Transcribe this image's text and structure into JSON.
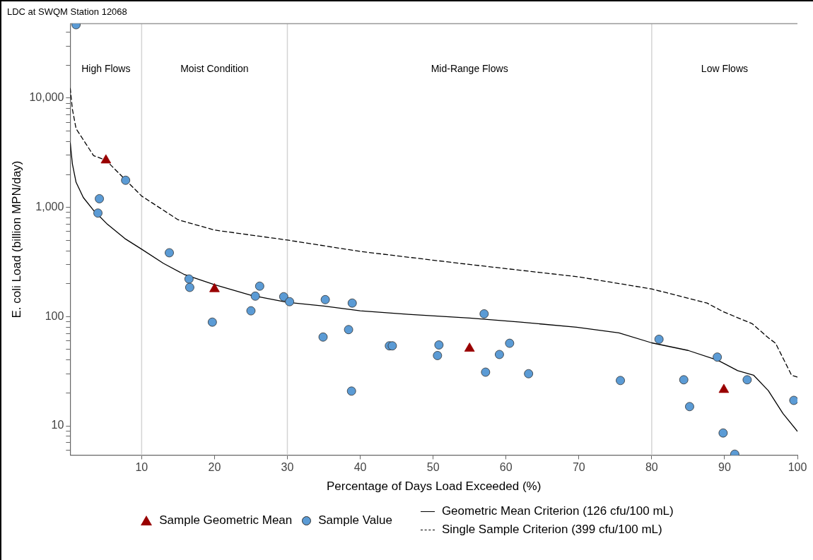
{
  "chart_data": {
    "type": "scatter",
    "title": "LDC at SWQM Station 12068",
    "xlabel": "Percentage of Days Load Exceeded (%)",
    "ylabel": "E. coli Load (billion MPN/day)",
    "xlim": [
      0.2,
      100
    ],
    "xticks": [
      10,
      20,
      30,
      40,
      50,
      60,
      70,
      80,
      90,
      100
    ],
    "ylim": [
      5.4,
      48000
    ],
    "log": "y",
    "yticks": [
      {
        "value": 6,
        "label": null
      },
      {
        "value": 7,
        "label": null
      },
      {
        "value": 8,
        "label": null
      },
      {
        "value": 9,
        "label": null
      },
      {
        "value": 10,
        "label": "10"
      },
      {
        "value": 20,
        "label": null
      },
      {
        "value": 30,
        "label": null
      },
      {
        "value": 40,
        "label": null
      },
      {
        "value": 50,
        "label": null
      },
      {
        "value": 60,
        "label": null
      },
      {
        "value": 70,
        "label": null
      },
      {
        "value": 80,
        "label": null
      },
      {
        "value": 90,
        "label": null
      },
      {
        "value": 100,
        "label": "100"
      },
      {
        "value": 200,
        "label": null
      },
      {
        "value": 300,
        "label": null
      },
      {
        "value": 400,
        "label": null
      },
      {
        "value": 500,
        "label": null
      },
      {
        "value": 600,
        "label": null
      },
      {
        "value": 700,
        "label": null
      },
      {
        "value": 800,
        "label": null
      },
      {
        "value": 900,
        "label": null
      },
      {
        "value": 1000,
        "label": "1,000"
      },
      {
        "value": 2000,
        "label": null
      },
      {
        "value": 3000,
        "label": null
      },
      {
        "value": 4000,
        "label": null
      },
      {
        "value": 5000,
        "label": null
      },
      {
        "value": 6000,
        "label": null
      },
      {
        "value": 7000,
        "label": null
      },
      {
        "value": 8000,
        "label": null
      },
      {
        "value": 9000,
        "label": null
      },
      {
        "value": 10000,
        "label": "10,000"
      },
      {
        "value": 20000,
        "label": null
      },
      {
        "value": 30000,
        "label": null
      },
      {
        "value": 40000,
        "label": null
      }
    ],
    "grid": false,
    "legend": "bottom",
    "ref_lines": [
      {
        "axis": "x",
        "value": 10,
        "color": "#d4d4d4"
      },
      {
        "axis": "x",
        "value": 30,
        "color": "#d4d4d4"
      },
      {
        "axis": "x",
        "value": 80,
        "color": "#d4d4d4"
      }
    ],
    "annotations": [
      "High Flows",
      "Moist Condition",
      "Mid-Range Flows",
      "Low Flows"
    ],
    "series": [
      {
        "name": "Sample Geometric Mean",
        "type": "scatter",
        "marker": "triangle",
        "color": "#990000",
        "x": [
          5.1,
          20.0,
          55.0,
          89.9
        ],
        "values": [
          2700,
          179,
          51,
          21.4
        ]
      },
      {
        "name": "Sample Value",
        "type": "scatter",
        "marker": "circle",
        "color": "#5b9bd5",
        "x": [
          1.0,
          7.8,
          4.2,
          4.0,
          13.8,
          16.5,
          16.6,
          19.7,
          25.0,
          25.6,
          26.2,
          29.5,
          30.3,
          35.2,
          34.9,
          38.4,
          38.9,
          38.8,
          44.0,
          44.4,
          50.8,
          50.6,
          57.0,
          57.2,
          59.1,
          60.5,
          63.1,
          75.7,
          81.0,
          84.4,
          85.2,
          89.0,
          93.1,
          89.8,
          91.4,
          99.5
        ],
        "values": [
          47000,
          1770,
          1200,
          887,
          384,
          221,
          185,
          89,
          113,
          154,
          190,
          152,
          137,
          143,
          65,
          76,
          133,
          20.8,
          54,
          54,
          55,
          44,
          106,
          31,
          45,
          57,
          30,
          26,
          62,
          26.4,
          15,
          42.6,
          26.4,
          8.6,
          5.5,
          17.1
        ]
      },
      {
        "name": "Geometric Mean Criterion (126 cfu/100 mL)",
        "type": "line",
        "line_style": "solid",
        "color": "#000000",
        "x": [
          0.2,
          0.5,
          1,
          2,
          3.4,
          5.3,
          7.7,
          10,
          13,
          15.9,
          20,
          25,
          30,
          35,
          40,
          46.6,
          55,
          62,
          69.7,
          75.5,
          80,
          85,
          89,
          90,
          91.8,
          94,
          96,
          98,
          100
        ],
        "values": [
          3900,
          2490,
          1700,
          1230,
          940,
          700,
          518,
          414,
          307,
          242,
          196,
          157,
          135,
          125,
          113,
          105,
          97,
          89,
          80,
          71,
          57.5,
          49,
          40,
          37,
          32,
          29,
          21,
          13,
          8.9
        ]
      },
      {
        "name": "Single Sample Criterion (399 cfu/100 mL)",
        "type": "line",
        "line_style": "dashed",
        "color": "#000000",
        "x": [
          0.2,
          0.5,
          1,
          3.4,
          5.1,
          10,
          15,
          20,
          30,
          40,
          53.7,
          70,
          80,
          87.6,
          89.8,
          93.8,
          96,
          97,
          99.2,
          100
        ],
        "values": [
          12300,
          7900,
          5260,
          2980,
          2700,
          1270,
          770,
          620,
          502,
          395,
          307,
          231,
          179,
          133,
          111,
          86,
          64,
          57,
          29,
          28
        ]
      }
    ]
  }
}
